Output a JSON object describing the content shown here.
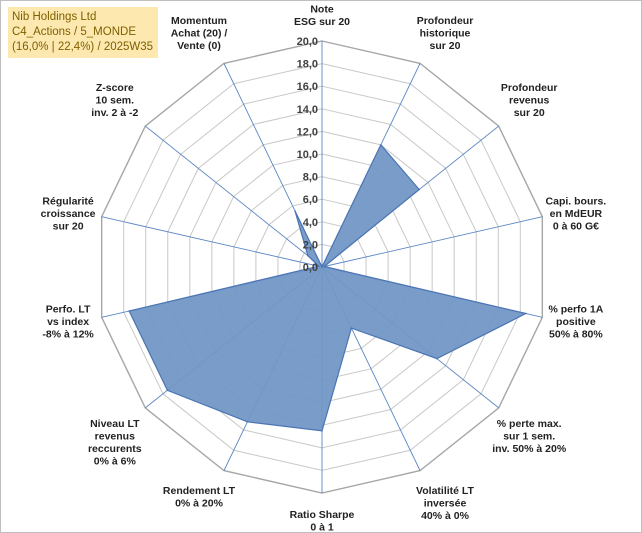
{
  "title_box": {
    "line1": "Nib Holdings Ltd",
    "line2": "C4_Actions / 5_MONDE",
    "line3": "(16,0% | 22,4%) / 2025W35",
    "background": "#fde9b0",
    "color": "#7f6000"
  },
  "chart_data": {
    "type": "radar",
    "title": "",
    "rmin": 0,
    "rmax": 20,
    "tick_labels": [
      "0,0",
      "2,0",
      "4,0",
      "6,0",
      "8,0",
      "10,0",
      "12,0",
      "14,0",
      "16,0",
      "18,0",
      "20,0"
    ],
    "grid": true,
    "legend": "none",
    "fill_color": "#7297c6",
    "line_color": "#4a74b4",
    "axes": [
      {
        "label": [
          "Note",
          "ESG sur 20"
        ],
        "value": 0
      },
      {
        "label": [
          "Profondeur",
          "historique",
          "sur 20"
        ],
        "value": 12
      },
      {
        "label": [
          "Profondeur",
          "revenus",
          "sur 20"
        ],
        "value": 11
      },
      {
        "label": [
          "Capi. bours.",
          "en MdEUR",
          "0 à 60 G€"
        ],
        "value": 0.2
      },
      {
        "label": [
          "% perfo 1A",
          "positive",
          "50% à 80%"
        ],
        "value": 18.5
      },
      {
        "label": [
          "% perte max.",
          "sur 1 sem.",
          "inv. 50% à 20%"
        ],
        "value": 13
      },
      {
        "label": [
          "Volatilité LT",
          "inversée",
          "40% à 0%"
        ],
        "value": 6
      },
      {
        "label": [
          "Ratio Sharpe",
          "0 à 1"
        ],
        "value": 14.5
      },
      {
        "label": [
          "Rendement LT",
          "0% à 20%"
        ],
        "value": 15.2
      },
      {
        "label": [
          "Niveau LT",
          "revenus",
          "reccurents",
          "0% à 6%"
        ],
        "value": 17.5
      },
      {
        "label": [
          "Perfo. LT",
          "vs index",
          "-8% à 12%"
        ],
        "value": 17.5
      },
      {
        "label": [
          "Régularité",
          "croissance",
          "sur 20"
        ],
        "value": 0.3
      },
      {
        "label": [
          "Z-score",
          "10 sem.",
          "inv. 2 à -2"
        ],
        "value": 1.6
      },
      {
        "label": [
          "Momentum",
          "Achat (20) /",
          "Vente (0)"
        ],
        "value": 5.5
      }
    ]
  }
}
